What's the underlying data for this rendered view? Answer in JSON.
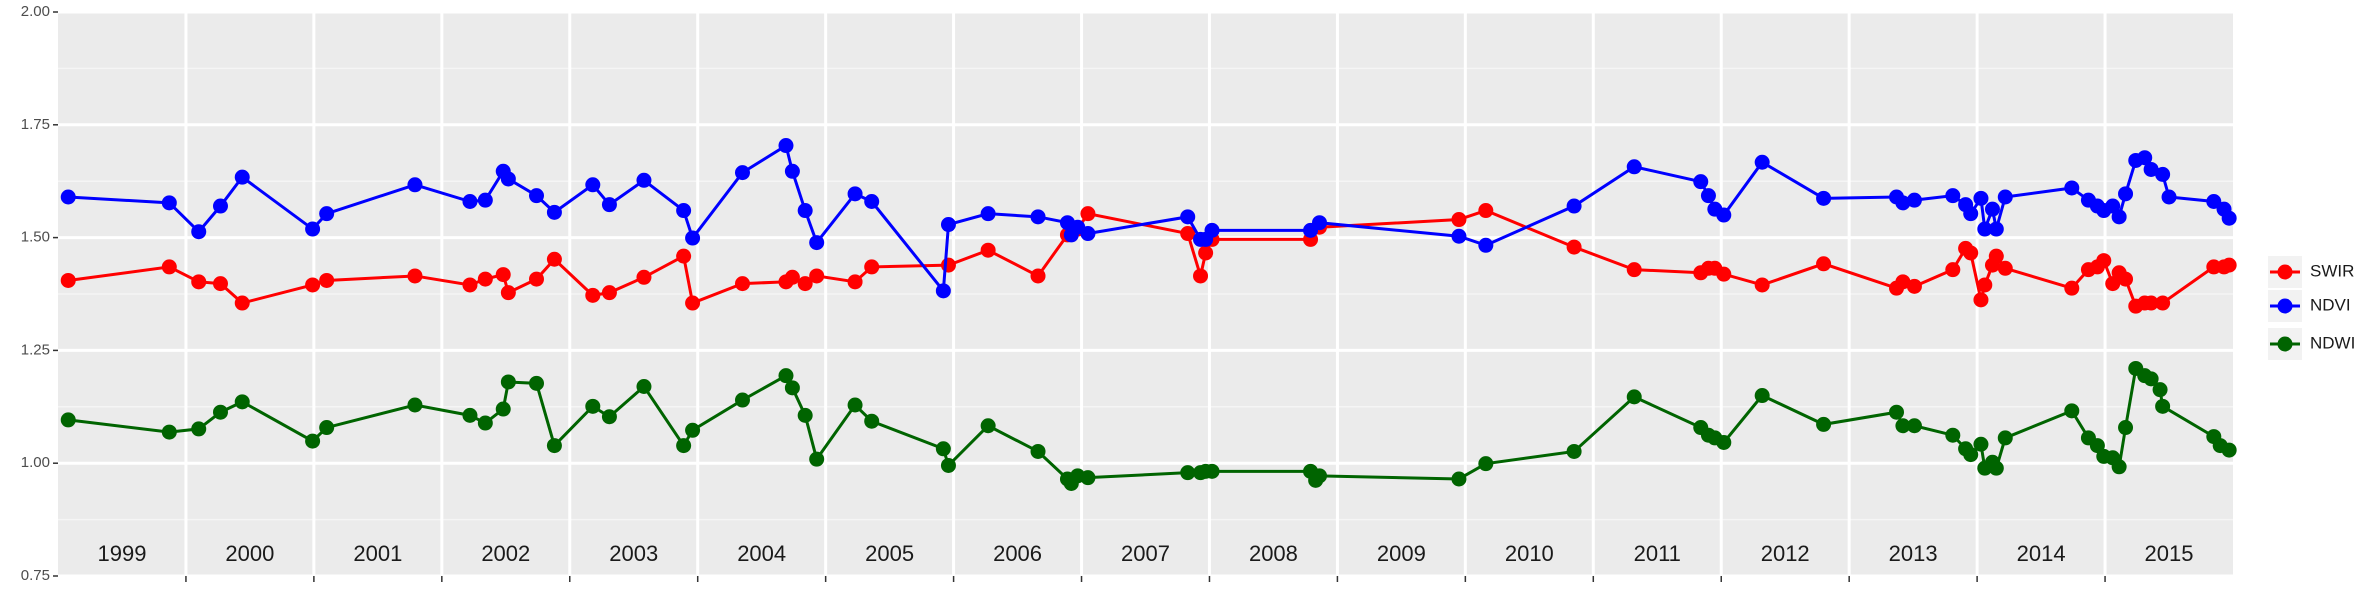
{
  "chart_data": {
    "type": "line",
    "xlim": [
      1999,
      2016
    ],
    "xticks": [
      2000,
      2001,
      2002,
      2003,
      2004,
      2005,
      2006,
      2007,
      2008,
      2009,
      2010,
      2011,
      2012,
      2013,
      2014,
      2015
    ],
    "ylim": [
      0.75,
      2.0
    ],
    "yticks": [
      0.75,
      {
        "value": 1.0,
        "label": "1.00"
      },
      1.25,
      {
        "value": 1.5,
        "label": "1.50"
      },
      1.75,
      {
        "value": 2.0,
        "label": "2.00"
      }
    ],
    "yminor": [
      0.875,
      1.125,
      1.375,
      1.625,
      1.875
    ],
    "grid": true,
    "legend": "right",
    "year_labels": [
      {
        "x": 1999.5,
        "label": "1999"
      },
      {
        "x": 2000.5,
        "label": "2000"
      },
      {
        "x": 2001.5,
        "label": "2001"
      },
      {
        "x": 2002.5,
        "label": "2002"
      },
      {
        "x": 2003.5,
        "label": "2003"
      },
      {
        "x": 2004.5,
        "label": "2004"
      },
      {
        "x": 2005.5,
        "label": "2005"
      },
      {
        "x": 2006.5,
        "label": "2006"
      },
      {
        "x": 2007.5,
        "label": "2007"
      },
      {
        "x": 2008.5,
        "label": "2008"
      },
      {
        "x": 2009.5,
        "label": "2009"
      },
      {
        "x": 2010.5,
        "label": "2010"
      },
      {
        "x": 2011.5,
        "label": "2011"
      },
      {
        "x": 2012.5,
        "label": "2012"
      },
      {
        "x": 2013.5,
        "label": "2013"
      },
      {
        "x": 2014.5,
        "label": "2014"
      },
      {
        "x": 2015.5,
        "label": "2015"
      }
    ],
    "series": [
      {
        "name": "SWIR",
        "color": "#ff0000",
        "x": [
          1999.08,
          1999.87,
          2000.1,
          2000.27,
          2000.44,
          2000.99,
          2001.1,
          2001.79,
          2002.22,
          2002.34,
          2002.48,
          2002.52,
          2002.74,
          2002.88,
          2003.18,
          2003.31,
          2003.58,
          2003.89,
          2003.96,
          2004.35,
          2004.69,
          2004.74,
          2004.84,
          2004.93,
          2005.23,
          2005.36,
          2005.96,
          2006.27,
          2006.66,
          2006.89,
          2006.97,
          2007.05,
          2007.83,
          2007.93,
          2007.97,
          2008.02,
          2008.79,
          2008.86,
          2009.95,
          2010.16,
          2010.85,
          2011.32,
          2011.84,
          2011.9,
          2011.95,
          2012.02,
          2012.32,
          2012.8,
          2013.37,
          2013.42,
          2013.51,
          2013.81,
          2013.91,
          2013.95,
          2014.03,
          2014.06,
          2014.12,
          2014.15,
          2014.22,
          2014.74,
          2014.87,
          2014.94,
          2014.99,
          2015.06,
          2015.11,
          2015.16,
          2015.24,
          2015.31,
          2015.36,
          2015.45,
          2015.85,
          2015.93,
          2015.97
        ],
        "values": [
          1.405,
          1.435,
          1.402,
          1.398,
          1.355,
          1.395,
          1.405,
          1.415,
          1.395,
          1.408,
          1.418,
          1.378,
          1.408,
          1.452,
          1.372,
          1.378,
          1.412,
          1.459,
          1.355,
          1.398,
          1.402,
          1.412,
          1.398,
          1.415,
          1.402,
          1.435,
          1.439,
          1.472,
          1.415,
          1.506,
          1.519,
          1.553,
          1.509,
          1.415,
          1.466,
          1.496,
          1.496,
          1.523,
          1.54,
          1.56,
          1.479,
          1.429,
          1.422,
          1.432,
          1.432,
          1.419,
          1.395,
          1.442,
          1.388,
          1.402,
          1.392,
          1.429,
          1.476,
          1.466,
          1.362,
          1.395,
          1.439,
          1.459,
          1.432,
          1.388,
          1.429,
          1.435,
          1.449,
          1.398,
          1.422,
          1.408,
          1.348,
          1.355,
          1.355,
          1.355,
          1.435,
          1.435,
          1.439
        ]
      },
      {
        "name": "NDVI",
        "color": "#0000ff",
        "x": [
          1999.08,
          1999.87,
          2000.1,
          2000.27,
          2000.44,
          2000.99,
          2001.1,
          2001.79,
          2002.22,
          2002.34,
          2002.48,
          2002.52,
          2002.74,
          2002.88,
          2003.18,
          2003.31,
          2003.58,
          2003.89,
          2003.96,
          2004.35,
          2004.69,
          2004.74,
          2004.84,
          2004.93,
          2005.23,
          2005.36,
          2005.92,
          2005.96,
          2006.27,
          2006.66,
          2006.89,
          2006.92,
          2006.97,
          2007.05,
          2007.83,
          2007.93,
          2007.97,
          2008.02,
          2008.79,
          2008.86,
          2009.95,
          2010.16,
          2010.85,
          2011.32,
          2011.84,
          2011.9,
          2011.95,
          2012.02,
          2012.32,
          2012.8,
          2013.37,
          2013.42,
          2013.51,
          2013.81,
          2013.91,
          2013.95,
          2014.03,
          2014.06,
          2014.12,
          2014.15,
          2014.22,
          2014.74,
          2014.87,
          2014.94,
          2014.99,
          2015.06,
          2015.11,
          2015.16,
          2015.24,
          2015.31,
          2015.36,
          2015.45,
          2015.5,
          2015.85,
          2015.93,
          2015.97
        ],
        "values": [
          1.59,
          1.577,
          1.513,
          1.57,
          1.634,
          1.519,
          1.553,
          1.617,
          1.58,
          1.583,
          1.647,
          1.63,
          1.593,
          1.556,
          1.617,
          1.573,
          1.627,
          1.56,
          1.499,
          1.644,
          1.704,
          1.647,
          1.56,
          1.489,
          1.597,
          1.58,
          1.382,
          1.529,
          1.553,
          1.546,
          1.533,
          1.506,
          1.523,
          1.509,
          1.546,
          1.496,
          1.496,
          1.516,
          1.516,
          1.533,
          1.503,
          1.483,
          1.57,
          1.657,
          1.624,
          1.593,
          1.563,
          1.55,
          1.667,
          1.587,
          1.59,
          1.577,
          1.583,
          1.593,
          1.573,
          1.553,
          1.587,
          1.519,
          1.563,
          1.519,
          1.59,
          1.61,
          1.583,
          1.57,
          1.56,
          1.57,
          1.546,
          1.597,
          1.671,
          1.677,
          1.651,
          1.64,
          1.59,
          1.58,
          1.563,
          1.543
        ]
      },
      {
        "name": "NDWI",
        "color": "#006400",
        "x": [
          1999.08,
          1999.87,
          2000.1,
          2000.27,
          2000.44,
          2000.99,
          2001.1,
          2001.79,
          2002.22,
          2002.34,
          2002.48,
          2002.52,
          2002.74,
          2002.88,
          2003.18,
          2003.31,
          2003.58,
          2003.89,
          2003.96,
          2004.35,
          2004.69,
          2004.74,
          2004.84,
          2004.93,
          2005.23,
          2005.36,
          2005.92,
          2005.96,
          2006.27,
          2006.66,
          2006.89,
          2006.92,
          2006.97,
          2007.05,
          2007.83,
          2007.93,
          2007.97,
          2008.02,
          2008.79,
          2008.83,
          2008.86,
          2009.95,
          2010.16,
          2010.85,
          2011.32,
          2011.84,
          2011.9,
          2011.95,
          2012.02,
          2012.32,
          2012.8,
          2013.37,
          2013.42,
          2013.51,
          2013.81,
          2013.91,
          2013.95,
          2014.03,
          2014.06,
          2014.12,
          2014.15,
          2014.22,
          2014.74,
          2014.87,
          2014.94,
          2014.99,
          2015.06,
          2015.11,
          2015.16,
          2015.24,
          2015.31,
          2015.36,
          2015.43,
          2015.45,
          2015.85,
          2015.9,
          2015.97
        ],
        "values": [
          1.096,
          1.069,
          1.076,
          1.113,
          1.136,
          1.049,
          1.079,
          1.129,
          1.106,
          1.089,
          1.12,
          1.18,
          1.177,
          1.039,
          1.126,
          1.103,
          1.17,
          1.039,
          1.073,
          1.14,
          1.194,
          1.167,
          1.106,
          1.009,
          1.129,
          1.093,
          1.032,
          0.995,
          1.083,
          1.026,
          0.965,
          0.955,
          0.972,
          0.968,
          0.979,
          0.979,
          0.982,
          0.982,
          0.982,
          0.962,
          0.972,
          0.965,
          0.999,
          1.026,
          1.147,
          1.079,
          1.062,
          1.056,
          1.046,
          1.15,
          1.086,
          1.113,
          1.083,
          1.083,
          1.062,
          1.032,
          1.019,
          1.042,
          0.989,
          1.002,
          0.989,
          1.056,
          1.116,
          1.056,
          1.039,
          1.015,
          1.012,
          0.992,
          1.079,
          1.21,
          1.194,
          1.187,
          1.163,
          1.126,
          1.059,
          1.039,
          1.029
        ]
      }
    ]
  }
}
